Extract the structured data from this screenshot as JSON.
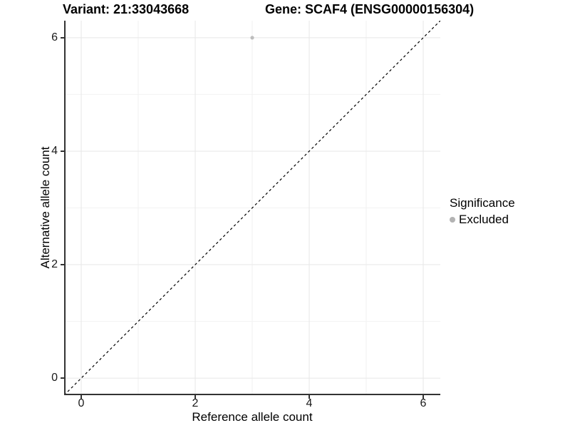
{
  "titles": {
    "variant": "Variant: 21:33043668",
    "gene": "Gene: SCAF4 (ENSG00000156304)"
  },
  "axes": {
    "x": {
      "label": "Reference allele count",
      "tick_labels": [
        "0",
        "2",
        "4",
        "6"
      ]
    },
    "y": {
      "label": "Alternative allele count",
      "tick_labels": [
        "0",
        "2",
        "4",
        "6"
      ]
    }
  },
  "legend": {
    "title": "Significance",
    "items": [
      {
        "label": "Excluded",
        "color": "#b3b3b3",
        "marker": "dot-icon"
      }
    ]
  },
  "chart_data": {
    "type": "scatter",
    "title": "Variant: 21:33043668    Gene: SCAF4 (ENSG00000156304)",
    "xlabel": "Reference allele count",
    "ylabel": "Alternative allele count",
    "xlim": [
      -0.3,
      6.3
    ],
    "ylim": [
      -0.3,
      6.3
    ],
    "x_ticks": [
      0,
      2,
      4,
      6
    ],
    "y_ticks": [
      0,
      2,
      4,
      6
    ],
    "x_minor_ticks": [
      1,
      3,
      5
    ],
    "y_minor_ticks": [
      1,
      3,
      5
    ],
    "grid": "major+minor",
    "legend_position": "right",
    "series": [
      {
        "name": "Excluded",
        "color": "#bdbdbd",
        "points": [
          {
            "x": 3,
            "y": 6
          }
        ]
      }
    ],
    "reference_line": {
      "type": "identity",
      "style": "dashed",
      "color": "#000000",
      "from": [
        -0.3,
        -0.3
      ],
      "to": [
        6.3,
        6.3
      ]
    }
  },
  "colors": {
    "background": "#ffffff",
    "grid_major": "#e7e7e7",
    "grid_minor": "#f2f2f2",
    "axis_line": "#333333",
    "tick_text": "#1a1a1a"
  }
}
